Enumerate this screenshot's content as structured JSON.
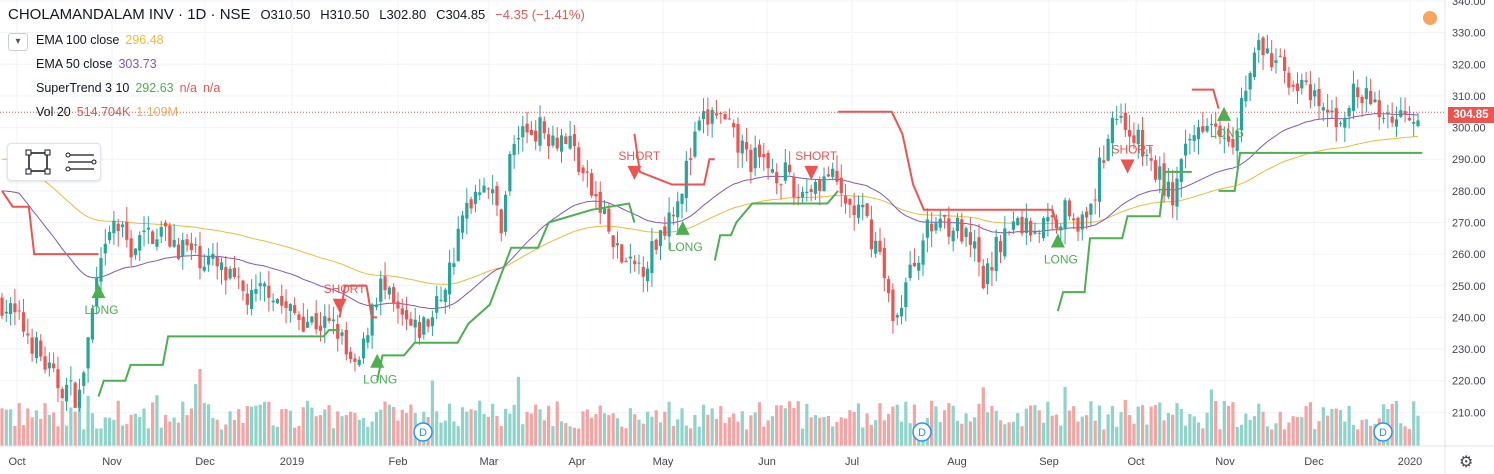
{
  "header": {
    "symbol": "CHOLAMANDALAM INV · 1D · NSE",
    "open": "O310.50",
    "high": "H310.50",
    "low": "L302.80",
    "close": "C304.85",
    "change": "−4.35 (−1.41%)"
  },
  "indicators": [
    {
      "name": "EMA 100 close",
      "value": "296.48",
      "color": "#f0b93b"
    },
    {
      "name": "EMA 50 close",
      "value": "303.73",
      "color": "#7e57c2"
    },
    {
      "name": "SuperTrend 3 10",
      "value": "292.63",
      "extra": "n/a",
      "extra2": "n/a",
      "color": "#4caf50",
      "extra_color": "#ef5350"
    },
    {
      "name": "Vol 20",
      "value": "514.704K",
      "extra": "1.109M",
      "color": "#ef5350",
      "extra_color": "#f7a55d"
    }
  ],
  "last_price": "304.85",
  "colors": {
    "up": "#26a69a",
    "down": "#ef5350",
    "ema100": "#f0b93b",
    "ema50": "#7e57c2",
    "st_up": "#4caf50",
    "st_down": "#ef5350",
    "vol_up": "#8fd3c9",
    "vol_down": "#f4a4a2"
  },
  "icons": {
    "collapse": "chevron-down-icon",
    "rect_tool": "rectangle-tool-icon",
    "lines_tool": "horizontal-lines-icon",
    "settings": "gear-icon",
    "alert": "orange-circle-icon"
  },
  "chart_data": {
    "type": "candlestick",
    "y_axis": {
      "range": [
        200,
        340
      ],
      "ticks": [
        "340.00",
        "330.00",
        "320.00",
        "310.00",
        "300.00",
        "290.00",
        "280.00",
        "270.00",
        "260.00",
        "250.00",
        "240.00",
        "230.00",
        "220.00",
        "210.00"
      ]
    },
    "x_axis": {
      "ticks": [
        "Oct",
        "Nov",
        "Dec",
        "2019",
        "Feb",
        "Mar",
        "Apr",
        "May",
        "Jun",
        "Jul",
        "Aug",
        "Sep",
        "Oct",
        "Nov",
        "Dec",
        "2020"
      ]
    },
    "signals": [
      {
        "label": "LONG",
        "type": "long",
        "month": "Nov"
      },
      {
        "label": "SHORT",
        "type": "short",
        "month": "Jan"
      },
      {
        "label": "LONG",
        "type": "long",
        "month": "Feb"
      },
      {
        "label": "SHORT",
        "type": "short",
        "month": "May"
      },
      {
        "label": "LONG",
        "type": "long",
        "month": "May"
      },
      {
        "label": "SHORT",
        "type": "short",
        "month": "Jun"
      },
      {
        "label": "LONG",
        "type": "long",
        "month": "Sep"
      },
      {
        "label": "SHORT",
        "type": "short",
        "month": "Oct"
      },
      {
        "label": "LONG",
        "type": "long",
        "month": "Nov"
      }
    ],
    "dividend_markers": [
      {
        "label": "D",
        "month": "Feb"
      },
      {
        "label": "D",
        "month": "Jul"
      },
      {
        "label": "D",
        "month": "Dec"
      }
    ],
    "price_path_key": [
      [
        0,
        245
      ],
      [
        6,
        235
      ],
      [
        12,
        220
      ],
      [
        18,
        215
      ],
      [
        22,
        250
      ],
      [
        26,
        270
      ],
      [
        30,
        262
      ],
      [
        36,
        268
      ],
      [
        42,
        262
      ],
      [
        48,
        258
      ],
      [
        54,
        250
      ],
      [
        58,
        245
      ],
      [
        62,
        250
      ],
      [
        66,
        242
      ],
      [
        70,
        240
      ],
      [
        74,
        238
      ],
      [
        78,
        236
      ],
      [
        80,
        228
      ],
      [
        82,
        222
      ],
      [
        84,
        230
      ],
      [
        86,
        245
      ],
      [
        88,
        250
      ],
      [
        92,
        240
      ],
      [
        96,
        235
      ],
      [
        100,
        240
      ],
      [
        104,
        255
      ],
      [
        108,
        275
      ],
      [
        112,
        285
      ],
      [
        116,
        270
      ],
      [
        118,
        290
      ],
      [
        120,
        298
      ],
      [
        124,
        300
      ],
      [
        128,
        298
      ],
      [
        132,
        296
      ],
      [
        136,
        282
      ],
      [
        140,
        272
      ],
      [
        142,
        262
      ],
      [
        146,
        255
      ],
      [
        150,
        258
      ],
      [
        154,
        270
      ],
      [
        158,
        282
      ],
      [
        162,
        300
      ],
      [
        166,
        305
      ],
      [
        170,
        296
      ],
      [
        174,
        290
      ],
      [
        178,
        288
      ],
      [
        182,
        285
      ],
      [
        184,
        278
      ],
      [
        188,
        282
      ],
      [
        192,
        285
      ],
      [
        196,
        276
      ],
      [
        200,
        272
      ],
      [
        204,
        260
      ],
      [
        206,
        245
      ],
      [
        208,
        240
      ],
      [
        210,
        250
      ],
      [
        214,
        265
      ],
      [
        218,
        272
      ],
      [
        222,
        268
      ],
      [
        226,
        260
      ],
      [
        228,
        250
      ],
      [
        232,
        265
      ],
      [
        236,
        270
      ],
      [
        240,
        268
      ],
      [
        244,
        270
      ],
      [
        248,
        275
      ],
      [
        252,
        268
      ],
      [
        254,
        280
      ],
      [
        258,
        305
      ],
      [
        262,
        300
      ],
      [
        266,
        290
      ],
      [
        270,
        282
      ],
      [
        272,
        278
      ],
      [
        276,
        295
      ],
      [
        280,
        305
      ],
      [
        284,
        300
      ],
      [
        286,
        298
      ],
      [
        288,
        308
      ],
      [
        292,
        326
      ],
      [
        294,
        322
      ],
      [
        298,
        318
      ],
      [
        302,
        312
      ],
      [
        306,
        306
      ],
      [
        310,
        302
      ],
      [
        314,
        310
      ],
      [
        318,
        308
      ],
      [
        320,
        305
      ],
      [
        324,
        303
      ],
      [
        326,
        306
      ],
      [
        328,
        304.85
      ]
    ]
  }
}
